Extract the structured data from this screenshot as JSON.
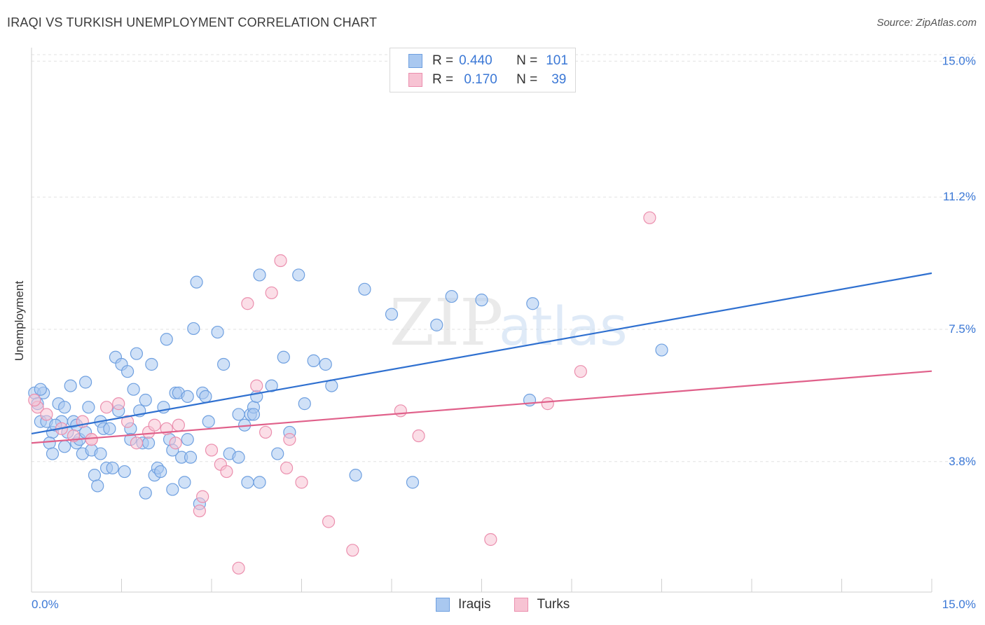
{
  "header": {
    "title": "IRAQI VS TURKISH UNEMPLOYMENT CORRELATION CHART",
    "source": "Source: ZipAtlas.com"
  },
  "legend": {
    "rows": [
      {
        "r_label": "R =",
        "r_value": "0.440",
        "n_label": "N =",
        "n_value": "101",
        "color": "#a9c8f0",
        "border": "#6fa0e0"
      },
      {
        "r_label": "R =",
        "r_value": "0.170",
        "n_label": "N =",
        "n_value": "39",
        "color": "#f7c3d3",
        "border": "#eb8fae"
      }
    ]
  },
  "bottom_legend": [
    "Iraqis",
    "Turks"
  ],
  "colors": {
    "iraqis_fill": "#a9c8f0",
    "iraqis_stroke": "#6fa0e0",
    "iraqis_line": "#2f70d0",
    "turks_fill": "#f7c3d3",
    "turks_stroke": "#eb8fae",
    "turks_line": "#e0608a",
    "axis_label_blue": "#3b78d6"
  },
  "chart_data": {
    "type": "scatter",
    "ylabel": "Unemployment",
    "xlabel": "",
    "xlim": [
      0,
      15
    ],
    "ylim": [
      0.15,
      15.3
    ],
    "x_tick_labels": [
      "0.0%",
      "15.0%"
    ],
    "y_ticks": [
      3.8,
      7.5,
      11.2,
      15.0
    ],
    "y_tick_labels": [
      "3.8%",
      "7.5%",
      "11.2%",
      "15.0%"
    ],
    "grid": "horizontal dashed",
    "watermark": "ZIPatlas",
    "series": [
      {
        "name": "Iraqis",
        "trend": {
          "x": [
            0,
            15
          ],
          "y": [
            4.58,
            9.07
          ]
        },
        "points": [
          [
            0.05,
            5.72
          ],
          [
            0.1,
            5.42
          ],
          [
            0.2,
            5.72
          ],
          [
            0.15,
            4.92
          ],
          [
            0.25,
            4.92
          ],
          [
            0.35,
            4.62
          ],
          [
            0.3,
            4.32
          ],
          [
            0.35,
            4.02
          ],
          [
            0.45,
            5.42
          ],
          [
            0.5,
            4.92
          ],
          [
            0.55,
            4.22
          ],
          [
            0.6,
            4.62
          ],
          [
            0.65,
            5.92
          ],
          [
            0.7,
            4.92
          ],
          [
            0.75,
            4.32
          ],
          [
            0.85,
            4.02
          ],
          [
            0.9,
            6.02
          ],
          [
            0.95,
            5.32
          ],
          [
            1.0,
            4.12
          ],
          [
            0.75,
            4.82
          ],
          [
            1.05,
            3.42
          ],
          [
            1.1,
            3.12
          ],
          [
            1.15,
            4.92
          ],
          [
            1.2,
            4.72
          ],
          [
            1.25,
            3.62
          ],
          [
            1.3,
            4.72
          ],
          [
            1.35,
            3.62
          ],
          [
            1.4,
            6.72
          ],
          [
            1.45,
            5.22
          ],
          [
            1.55,
            3.52
          ],
          [
            1.5,
            6.52
          ],
          [
            1.6,
            6.32
          ],
          [
            1.65,
            4.72
          ],
          [
            1.7,
            5.82
          ],
          [
            1.75,
            6.82
          ],
          [
            1.8,
            5.22
          ],
          [
            1.85,
            4.32
          ],
          [
            1.9,
            2.92
          ],
          [
            1.95,
            4.32
          ],
          [
            2.0,
            6.52
          ],
          [
            2.05,
            3.42
          ],
          [
            2.1,
            3.62
          ],
          [
            2.2,
            5.32
          ],
          [
            2.25,
            7.22
          ],
          [
            2.3,
            4.42
          ],
          [
            2.35,
            3.02
          ],
          [
            2.4,
            5.72
          ],
          [
            2.45,
            5.72
          ],
          [
            2.5,
            3.92
          ],
          [
            2.55,
            3.22
          ],
          [
            2.6,
            5.62
          ],
          [
            2.65,
            3.92
          ],
          [
            2.6,
            4.42
          ],
          [
            2.7,
            7.52
          ],
          [
            2.75,
            8.82
          ],
          [
            2.8,
            2.62
          ],
          [
            2.85,
            5.72
          ],
          [
            2.9,
            5.62
          ],
          [
            2.95,
            4.92
          ],
          [
            3.1,
            7.42
          ],
          [
            3.2,
            6.52
          ],
          [
            3.3,
            4.02
          ],
          [
            3.45,
            5.12
          ],
          [
            3.55,
            4.82
          ],
          [
            3.6,
            3.22
          ],
          [
            3.65,
            5.12
          ],
          [
            3.7,
            5.32
          ],
          [
            3.75,
            5.62
          ],
          [
            3.8,
            3.22
          ],
          [
            3.7,
            5.12
          ],
          [
            3.8,
            9.02
          ],
          [
            4.0,
            5.92
          ],
          [
            4.2,
            6.72
          ],
          [
            4.3,
            4.62
          ],
          [
            4.45,
            9.02
          ],
          [
            4.55,
            5.42
          ],
          [
            4.7,
            6.62
          ],
          [
            4.9,
            6.52
          ],
          [
            5.0,
            5.92
          ],
          [
            5.4,
            3.42
          ],
          [
            5.55,
            8.62
          ],
          [
            6.0,
            7.92
          ],
          [
            6.35,
            3.22
          ],
          [
            6.75,
            7.62
          ],
          [
            7.0,
            8.42
          ],
          [
            7.5,
            8.32
          ],
          [
            8.3,
            5.52
          ],
          [
            8.35,
            8.22
          ],
          [
            10.5,
            6.92
          ],
          [
            0.15,
            5.82
          ],
          [
            0.55,
            5.32
          ],
          [
            0.8,
            4.42
          ],
          [
            1.15,
            4.02
          ],
          [
            1.9,
            5.52
          ],
          [
            2.15,
            3.52
          ],
          [
            3.45,
            3.92
          ],
          [
            4.1,
            4.02
          ],
          [
            0.4,
            4.82
          ],
          [
            0.9,
            4.62
          ],
          [
            1.65,
            4.42
          ],
          [
            2.35,
            4.12
          ]
        ]
      },
      {
        "name": "Turks",
        "trend": {
          "x": [
            0,
            15
          ],
          "y": [
            4.32,
            6.33
          ]
        },
        "points": [
          [
            0.1,
            5.32
          ],
          [
            0.25,
            5.12
          ],
          [
            0.5,
            4.72
          ],
          [
            0.7,
            4.52
          ],
          [
            0.85,
            4.92
          ],
          [
            1.0,
            4.42
          ],
          [
            1.25,
            5.32
          ],
          [
            1.45,
            5.42
          ],
          [
            1.6,
            4.92
          ],
          [
            1.75,
            4.32
          ],
          [
            1.95,
            4.62
          ],
          [
            2.05,
            4.82
          ],
          [
            2.25,
            4.72
          ],
          [
            2.45,
            4.82
          ],
          [
            2.4,
            4.32
          ],
          [
            2.8,
            2.42
          ],
          [
            2.85,
            2.82
          ],
          [
            3.0,
            4.12
          ],
          [
            3.15,
            3.72
          ],
          [
            3.25,
            3.52
          ],
          [
            3.45,
            0.82
          ],
          [
            3.6,
            8.22
          ],
          [
            3.75,
            5.92
          ],
          [
            3.9,
            4.62
          ],
          [
            4.0,
            8.52
          ],
          [
            4.15,
            9.42
          ],
          [
            4.25,
            3.62
          ],
          [
            4.3,
            4.42
          ],
          [
            4.5,
            3.22
          ],
          [
            4.95,
            2.12
          ],
          [
            5.35,
            1.32
          ],
          [
            6.15,
            5.22
          ],
          [
            6.45,
            4.52
          ],
          [
            7.65,
            1.62
          ],
          [
            8.6,
            5.42
          ],
          [
            9.15,
            6.32
          ],
          [
            10.3,
            10.62
          ],
          [
            0.05,
            5.52
          ],
          [
            1.0,
            4.42
          ]
        ]
      }
    ]
  }
}
